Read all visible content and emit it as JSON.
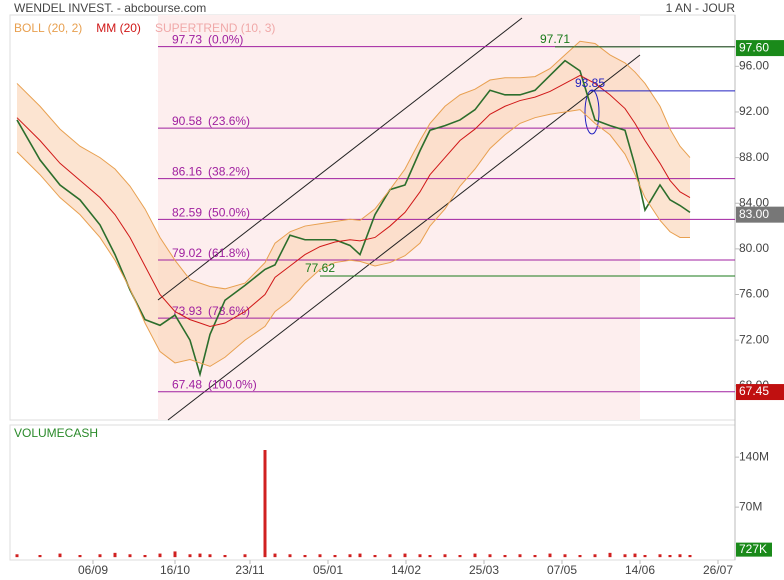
{
  "header": {
    "title": "WENDEL INVEST. - abcbourse.com",
    "period": "1 AN - JOUR"
  },
  "chart_data": [
    {
      "type": "line",
      "indicators": [
        {
          "text": "BOLL (20, 2)",
          "color": "#e8a050"
        },
        {
          "text": "MM (20)",
          "color": "#d01818"
        },
        {
          "text": "SUPERTREND (10, 3)",
          "color": "#f0a8a8"
        }
      ],
      "x": [
        2.8,
        12,
        20,
        28,
        36,
        42,
        48,
        54,
        60,
        66,
        72,
        76,
        80,
        86,
        94,
        102,
        106,
        112,
        118,
        124,
        130,
        136,
        140,
        146,
        152,
        158,
        164,
        168,
        174,
        180,
        186,
        192,
        198,
        204,
        210,
        216,
        222,
        228,
        234,
        240,
        246,
        250,
        254,
        260,
        264,
        268,
        272
      ],
      "series": [
        {
          "color": "#2c6e2c",
          "values": [
            91.3,
            87.8,
            85.6,
            84.3,
            82.1,
            79.5,
            76.4,
            73.8,
            73.3,
            74.2,
            72,
            69,
            72.5,
            75.5,
            76.8,
            78.2,
            78.6,
            81.2,
            80.8,
            80.8,
            80.8,
            80.3,
            79.5,
            83,
            85.2,
            85.6,
            88.6,
            90.4,
            90.8,
            91.3,
            92.2,
            93.9,
            93.5,
            93.5,
            93.9,
            95.2,
            96.5,
            95.6,
            91.3,
            90.8,
            90.4,
            87.3,
            83.4,
            85.6,
            84.3,
            83.8,
            83.2
          ]
        },
        {
          "color": "#d01818",
          "values": [
            91.5,
            89.5,
            87.5,
            86,
            84.5,
            83,
            81,
            78.5,
            76,
            74.5,
            73.8,
            73.5,
            73.2,
            73.5,
            74.5,
            76,
            77.5,
            78.5,
            79.5,
            80.2,
            80.6,
            80.8,
            80.7,
            81,
            82,
            83.2,
            85,
            86.5,
            88,
            89.5,
            90.5,
            91.8,
            92.5,
            93,
            93.3,
            93.8,
            94.5,
            95.2,
            94.5,
            93.5,
            92.3,
            91,
            89.5,
            87.5,
            86,
            85,
            84.5
          ]
        },
        {
          "color": "#e8a050",
          "values": [
            94.5,
            92.5,
            90.5,
            89,
            88,
            87,
            85.5,
            83.5,
            81,
            79,
            77.3,
            77,
            76.7,
            76.5,
            77,
            78.8,
            80.5,
            81.5,
            82,
            82.2,
            82.4,
            82.6,
            82.5,
            83.5,
            85.2,
            87,
            89.5,
            91,
            92.5,
            93.5,
            94,
            94.8,
            95,
            95,
            95.1,
            95.8,
            97,
            98.2,
            98,
            97,
            96.3,
            95.5,
            94.5,
            92.5,
            90.5,
            89,
            88
          ]
        },
        {
          "color": "#e8a050",
          "values": [
            88.5,
            86.5,
            84.5,
            83,
            81,
            79,
            76.5,
            73.5,
            71,
            70,
            70.3,
            70,
            69.7,
            70.5,
            72,
            73.2,
            74.5,
            75.5,
            77,
            78.2,
            78.8,
            79,
            78.9,
            78.5,
            78.8,
            79.4,
            80.5,
            82,
            83.5,
            85.5,
            87,
            88.8,
            90,
            91,
            91.5,
            91.8,
            92,
            92.2,
            91,
            90,
            88.3,
            86.5,
            84.5,
            82.5,
            81.5,
            81,
            81
          ]
        }
      ],
      "fib_levels": [
        {
          "value": 97.73,
          "label": "97.73",
          "pct": "(0.0%)"
        },
        {
          "value": 90.58,
          "label": "90.58",
          "pct": "(23.6%)"
        },
        {
          "value": 86.16,
          "label": "86.16",
          "pct": "(38.2%)"
        },
        {
          "value": 82.59,
          "label": "82.59",
          "pct": "(50.0%)"
        },
        {
          "value": 79.02,
          "label": "79.02",
          "pct": "(61.8%)"
        },
        {
          "value": 73.93,
          "label": "73.93",
          "pct": "(78.6%)"
        },
        {
          "value": 67.48,
          "label": "67.48",
          "pct": "(100.0%)"
        }
      ],
      "annotations": [
        {
          "value": 97.71,
          "label": "97.71",
          "x": 218,
          "color": "#1a7a1a"
        },
        {
          "value": 93.85,
          "label": "93.85",
          "x": 232,
          "color": "#2020c0"
        },
        {
          "value": 77.62,
          "label": "77.62",
          "x": 124,
          "color": "#1a7a1a"
        }
      ],
      "price_tags": [
        {
          "value": 97.6,
          "label": "97.60",
          "color": "#1a8a1a"
        },
        {
          "value": 83,
          "label": "83.00",
          "color": "#777777"
        },
        {
          "value": 67.45,
          "label": "67.45",
          "color": "#c01010"
        }
      ],
      "xlim": [
        0,
        290
      ],
      "xticks": [
        {
          "value": 33.2,
          "label": "06/09"
        },
        {
          "value": 66,
          "label": "16/10"
        },
        {
          "value": 96,
          "label": "23/11"
        },
        {
          "value": 127.2,
          "label": "05/01"
        },
        {
          "value": 158.4,
          "label": "14/02"
        },
        {
          "value": 189.6,
          "label": "25/03"
        },
        {
          "value": 220.8,
          "label": "07/05"
        },
        {
          "value": 252,
          "label": "14/06"
        },
        {
          "value": 283.2,
          "label": "26/07"
        }
      ],
      "ylim": [
        65,
        100.5
      ],
      "yticks": [
        {
          "value": 68,
          "label": "68.00"
        },
        {
          "value": 72,
          "label": "72.00"
        },
        {
          "value": 76,
          "label": "76.00"
        },
        {
          "value": 80,
          "label": "80.00"
        },
        {
          "value": 84,
          "label": "84.00"
        },
        {
          "value": 88,
          "label": "88.00"
        },
        {
          "value": 92,
          "label": "92.00"
        },
        {
          "value": 96,
          "label": "96.00"
        }
      ]
    },
    {
      "type": "bar",
      "title": "VOLUMECASH",
      "color": "#d02020",
      "values": [
        4,
        3,
        5,
        3,
        4,
        6,
        4,
        3,
        5,
        8,
        4,
        5,
        4,
        3,
        4,
        150,
        5,
        4,
        3,
        4,
        3,
        4,
        5,
        3,
        4,
        5,
        4,
        3,
        4,
        3,
        5,
        4,
        3,
        4,
        3,
        5,
        4,
        3,
        4,
        6,
        4,
        5,
        3,
        4,
        3,
        4,
        3
      ],
      "last": {
        "value": 0.727,
        "label": "727K"
      },
      "ylim": [
        -4,
        185
      ],
      "yticks": [
        {
          "value": 70,
          "label": "70M"
        },
        {
          "value": 140,
          "label": "140M"
        }
      ]
    }
  ]
}
